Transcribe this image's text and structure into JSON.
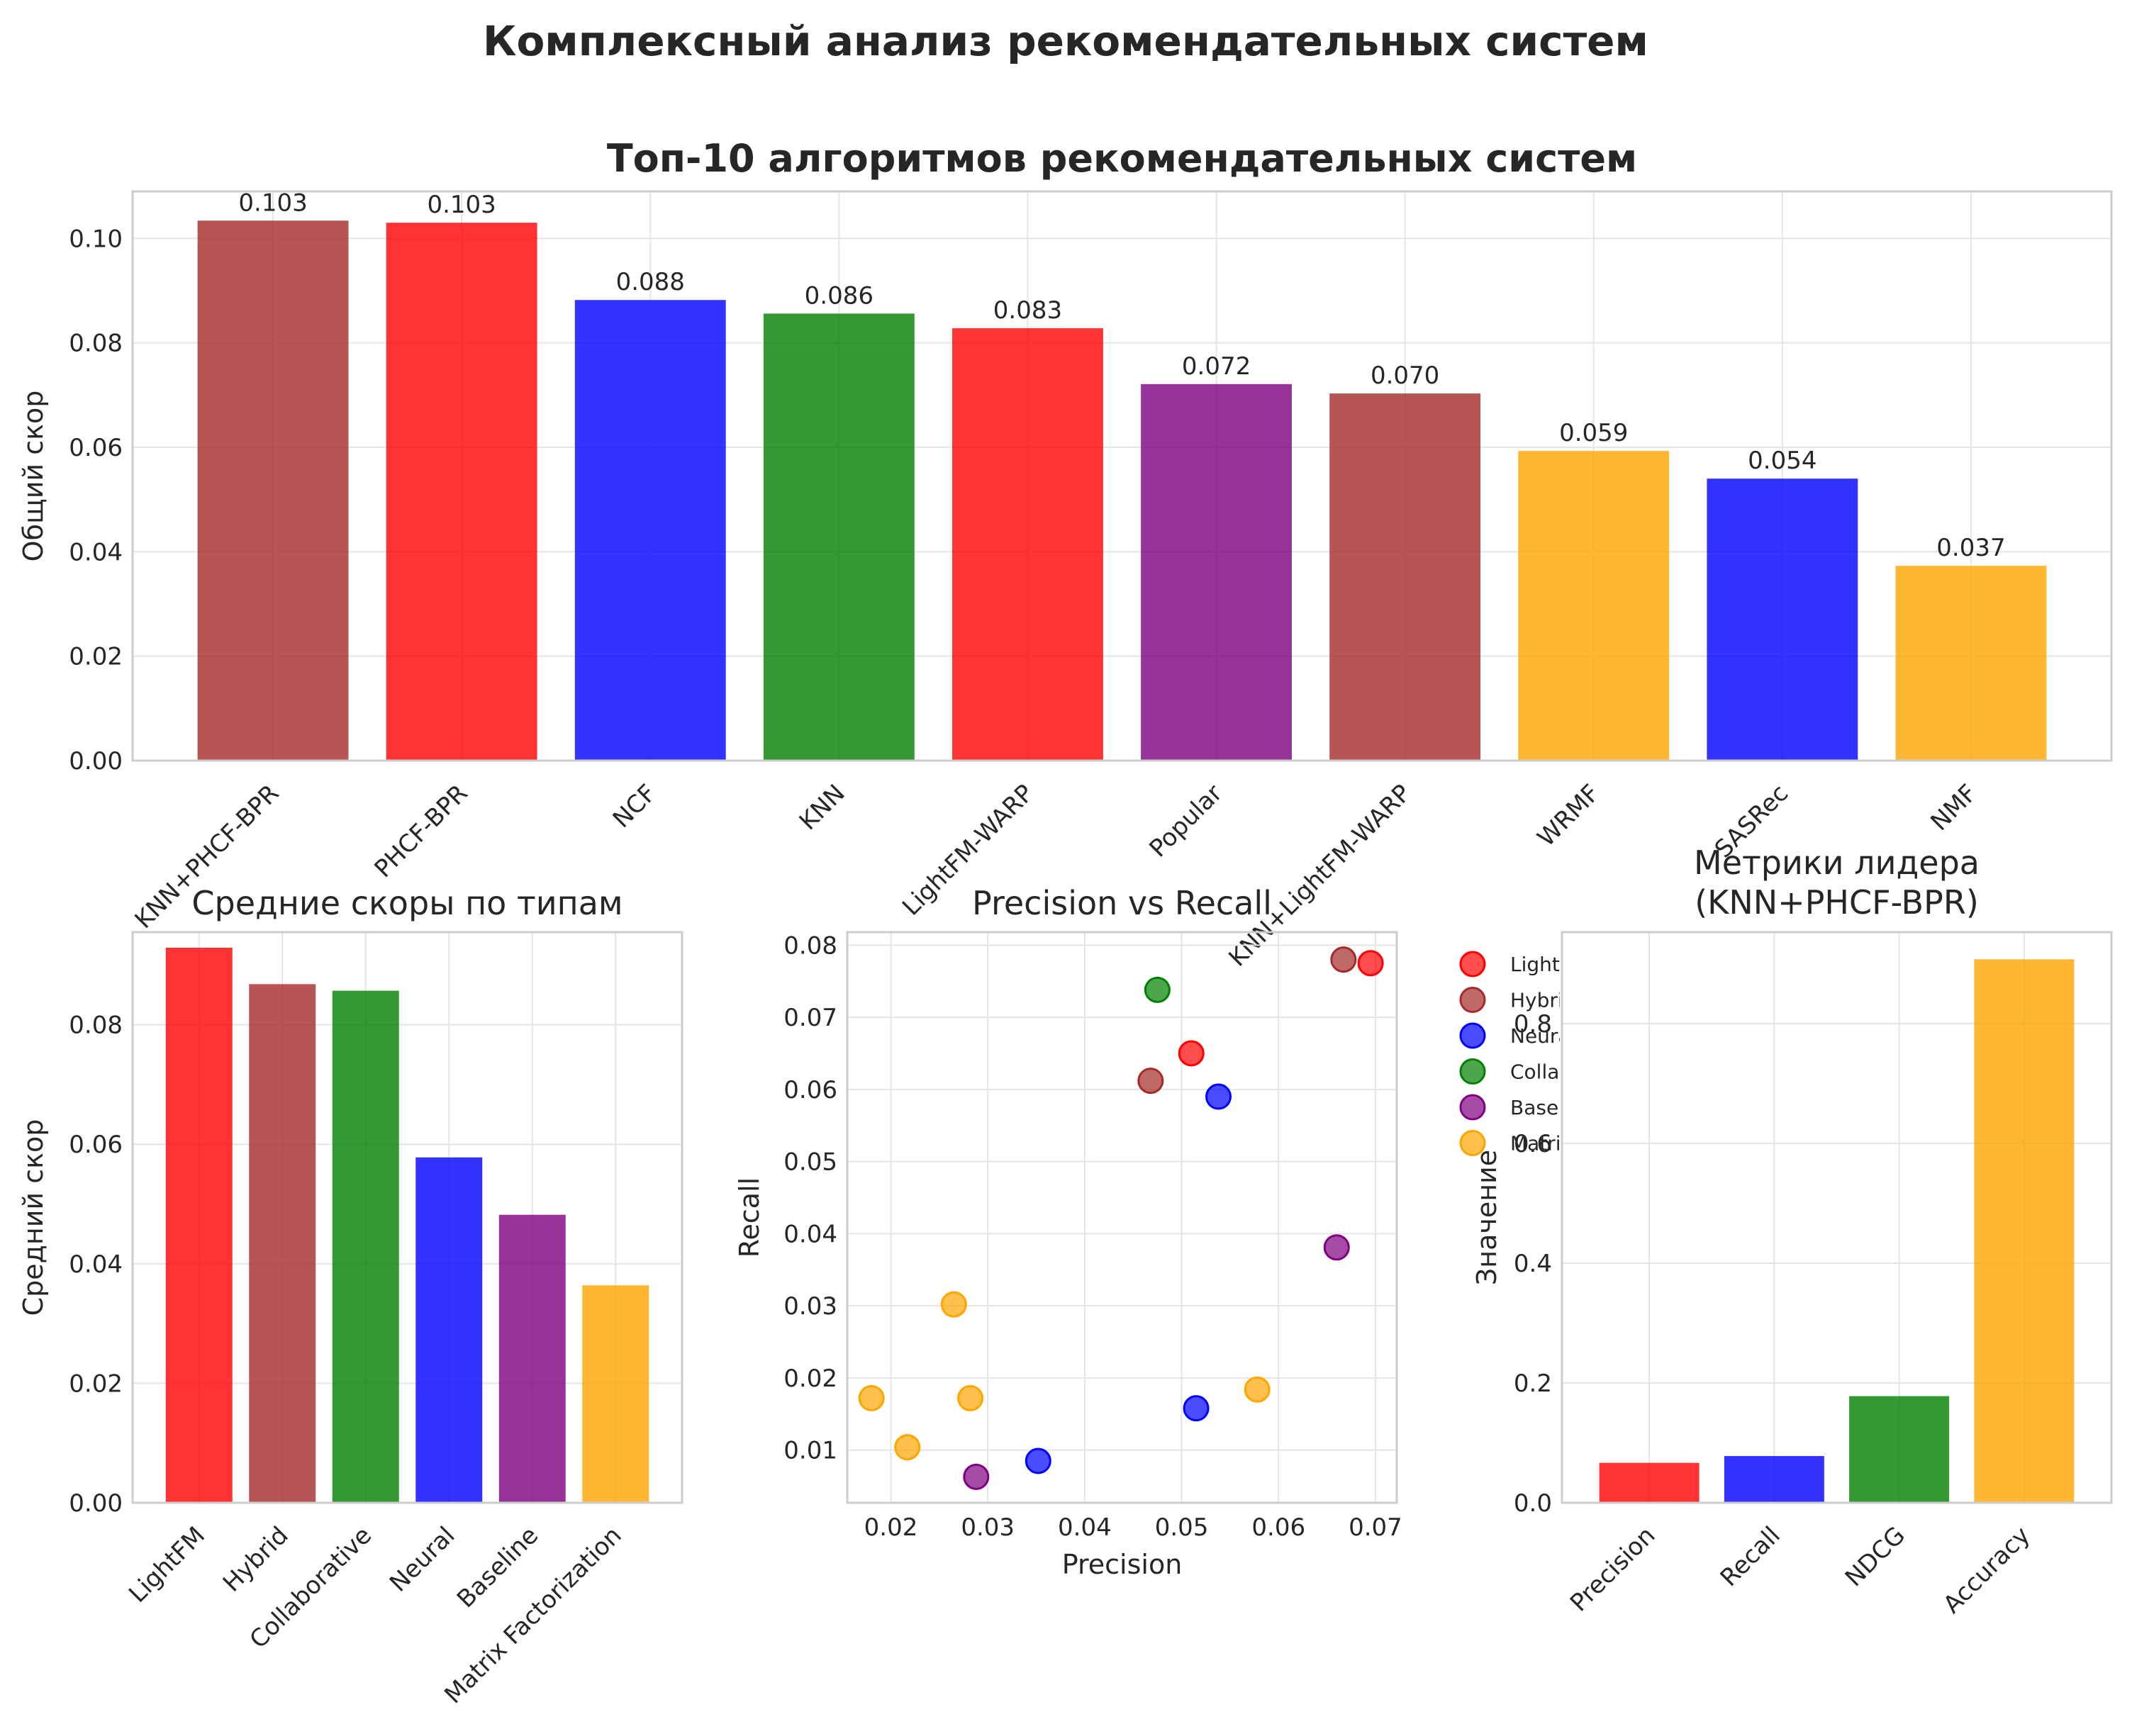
{
  "figure": {
    "title": "Комплексный анализ рекомендательных систем",
    "colors": {
      "LightFM": "#ff0000",
      "Hybrid": "#a52a2a",
      "Neural": "#0000ff",
      "Collaborative": "#008000",
      "Baseline": "#800080",
      "Matrix Factorization": "#ffa500"
    }
  },
  "chart_data": [
    {
      "id": "top10",
      "type": "bar",
      "title": "Топ-10 алгоритмов рекомендательных систем",
      "xlabel": "",
      "ylabel": "Общий скор",
      "ylim": [
        0,
        0.109
      ],
      "yticks": [
        "0.00",
        "0.02",
        "0.04",
        "0.06",
        "0.08",
        "0.10"
      ],
      "grid": true,
      "categories": [
        "KNN+PHCF-BPR",
        "PHCF-BPR",
        "NCF",
        "KNN",
        "LightFM-WARP",
        "Popular",
        "KNN+LightFM-WARP",
        "WRMF",
        "SASRec",
        "NMF"
      ],
      "values": [
        0.1034,
        0.103,
        0.0882,
        0.0856,
        0.0828,
        0.0721,
        0.0703,
        0.0593,
        0.054,
        0.0373
      ],
      "labels": [
        "0.103",
        "0.103",
        "0.088",
        "0.086",
        "0.083",
        "0.072",
        "0.070",
        "0.059",
        "0.054",
        "0.037"
      ],
      "types": [
        "Hybrid",
        "LightFM",
        "Neural",
        "Collaborative",
        "LightFM",
        "Baseline",
        "Hybrid",
        "Matrix Factorization",
        "Neural",
        "Matrix Factorization"
      ]
    },
    {
      "id": "by_type",
      "type": "bar",
      "title": "Средние скоры по типам",
      "xlabel": "",
      "ylabel": "Средний скор",
      "ylim": [
        0,
        0.0955
      ],
      "yticks": [
        "0.00",
        "0.02",
        "0.04",
        "0.06",
        "0.08"
      ],
      "grid": true,
      "categories": [
        "LightFM",
        "Hybrid",
        "Collaborative",
        "Neural",
        "Baseline",
        "Matrix Factorization"
      ],
      "values": [
        0.0929,
        0.0868,
        0.0857,
        0.0578,
        0.0482,
        0.0364
      ]
    },
    {
      "id": "prec_recall",
      "type": "scatter",
      "title": "Precision vs Recall",
      "xlabel": "Precision",
      "ylabel": "Recall",
      "xlim": [
        0.0155,
        0.0722
      ],
      "ylim": [
        0.0027,
        0.0818
      ],
      "xticks": [
        "0.02",
        "0.03",
        "0.04",
        "0.05",
        "0.06",
        "0.07"
      ],
      "yticks": [
        "0.01",
        "0.02",
        "0.03",
        "0.04",
        "0.05",
        "0.06",
        "0.07",
        "0.08"
      ],
      "grid": true,
      "legend_position": "outside-right",
      "legend": [
        "LightFM",
        "Hybrid",
        "Neural",
        "Collaborative",
        "Baseline",
        "Matrix Factorization"
      ],
      "series": [
        {
          "name": "LightFM",
          "x": [
            0.0695,
            0.051
          ],
          "y": [
            0.0775,
            0.065
          ]
        },
        {
          "name": "Hybrid",
          "x": [
            0.0667,
            0.0468
          ],
          "y": [
            0.078,
            0.0612
          ]
        },
        {
          "name": "Neural",
          "x": [
            0.0538,
            0.0352,
            0.0515
          ],
          "y": [
            0.059,
            0.0085,
            0.0158
          ]
        },
        {
          "name": "Collaborative",
          "x": [
            0.0475
          ],
          "y": [
            0.0738
          ]
        },
        {
          "name": "Baseline",
          "x": [
            0.066,
            0.0288
          ],
          "y": [
            0.0381,
            0.0063
          ]
        },
        {
          "name": "Matrix Factorization",
          "x": [
            0.0265,
            0.018,
            0.0282,
            0.0217,
            0.0578
          ],
          "y": [
            0.0302,
            0.0172,
            0.0172,
            0.0104,
            0.0184
          ]
        }
      ]
    },
    {
      "id": "leader",
      "type": "bar",
      "title": "Метрики лидера\n(KNN+PHCF-BPR)",
      "xlabel": "",
      "ylabel": "Значение",
      "ylim": [
        0,
        0.9525
      ],
      "yticks": [
        "0.0",
        "0.2",
        "0.4",
        "0.6",
        "0.8"
      ],
      "grid": true,
      "categories": [
        "Precision",
        "Recall",
        "NDCG",
        "Accuracy"
      ],
      "values": [
        0.0667,
        0.078,
        0.178,
        0.9072
      ],
      "colors": [
        "#ff0000",
        "#0000ff",
        "#008000",
        "#ffa500"
      ]
    }
  ]
}
